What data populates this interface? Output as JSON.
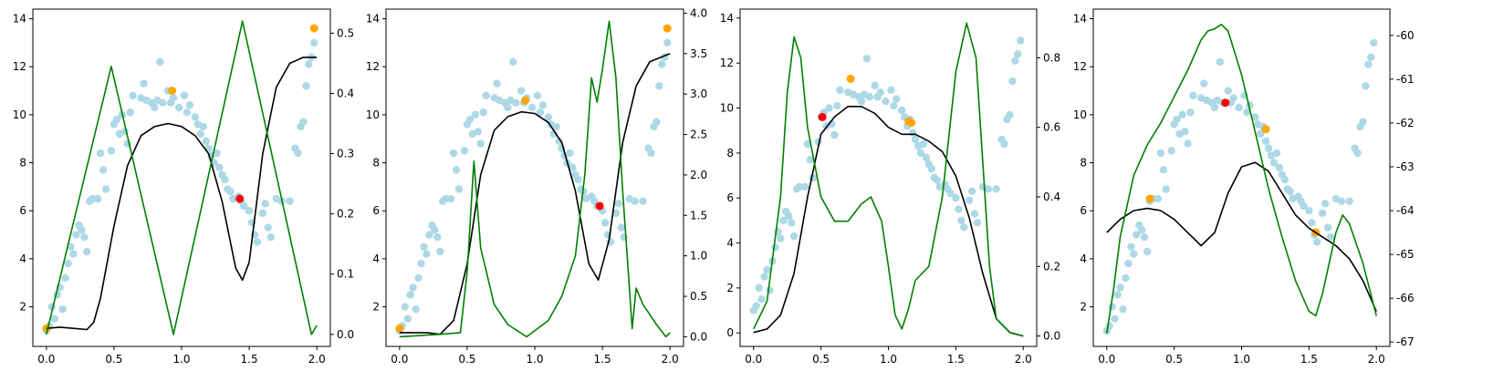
{
  "chart_data": [
    {
      "type": "scatter",
      "xlim": [
        -0.1,
        2.1
      ],
      "ylim": [
        0.35,
        14.4
      ],
      "y2lim": [
        -0.02,
        0.54
      ],
      "x_ticks": [
        "0.0",
        "0.5",
        "1.0",
        "1.5",
        "2.0"
      ],
      "y_ticks": [
        "2",
        "4",
        "6",
        "8",
        "10",
        "12",
        "14"
      ],
      "y2_ticks": [
        "0.0",
        "0.1",
        "0.2",
        "0.3",
        "0.4",
        "0.5"
      ],
      "grid": false,
      "orange_points": [
        {
          "x": 0.0,
          "y": 1.1
        },
        {
          "x": 0.93,
          "y": 11.0
        },
        {
          "x": 1.98,
          "y": 13.6
        }
      ],
      "red_points": [
        {
          "x": 1.43,
          "y": 6.5
        }
      ],
      "black_curve_y2": [
        [
          0.0,
          0.01
        ],
        [
          0.1,
          0.012
        ],
        [
          0.2,
          0.01
        ],
        [
          0.3,
          0.008
        ],
        [
          0.35,
          0.02
        ],
        [
          0.4,
          0.06
        ],
        [
          0.5,
          0.18
        ],
        [
          0.6,
          0.28
        ],
        [
          0.7,
          0.33
        ],
        [
          0.8,
          0.345
        ],
        [
          0.9,
          0.35
        ],
        [
          1.0,
          0.345
        ],
        [
          1.1,
          0.33
        ],
        [
          1.2,
          0.3
        ],
        [
          1.3,
          0.22
        ],
        [
          1.4,
          0.11
        ],
        [
          1.45,
          0.09
        ],
        [
          1.5,
          0.12
        ],
        [
          1.6,
          0.3
        ],
        [
          1.7,
          0.41
        ],
        [
          1.8,
          0.45
        ],
        [
          1.9,
          0.46
        ],
        [
          2.0,
          0.46
        ]
      ],
      "green_curve_y2": [
        [
          0.0,
          0.0
        ],
        [
          0.48,
          0.445
        ],
        [
          0.94,
          0.0
        ],
        [
          1.45,
          0.52
        ],
        [
          1.96,
          0.0
        ],
        [
          2.0,
          0.015
        ]
      ]
    },
    {
      "type": "scatter",
      "xlim": [
        -0.1,
        2.1
      ],
      "ylim": [
        0.35,
        14.4
      ],
      "y2lim": [
        -0.12,
        4.05
      ],
      "x_ticks": [
        "0.0",
        "0.5",
        "1.0",
        "1.5",
        "2.0"
      ],
      "y_ticks": [
        "2",
        "4",
        "6",
        "8",
        "10",
        "12",
        "14"
      ],
      "y2_ticks": [
        "0.0",
        "0.5",
        "1.0",
        "1.5",
        "2.0",
        "2.5",
        "3.0",
        "3.5",
        "4.0"
      ],
      "grid": false,
      "orange_points": [
        {
          "x": 0.0,
          "y": 1.1
        },
        {
          "x": 0.93,
          "y": 10.6
        },
        {
          "x": 1.98,
          "y": 13.6
        }
      ],
      "red_points": [
        {
          "x": 1.48,
          "y": 6.2
        }
      ],
      "black_curve_y2": [
        [
          0.0,
          0.05
        ],
        [
          0.2,
          0.05
        ],
        [
          0.3,
          0.03
        ],
        [
          0.4,
          0.2
        ],
        [
          0.5,
          0.9
        ],
        [
          0.6,
          2.0
        ],
        [
          0.7,
          2.55
        ],
        [
          0.8,
          2.72
        ],
        [
          0.9,
          2.78
        ],
        [
          1.0,
          2.76
        ],
        [
          1.1,
          2.65
        ],
        [
          1.2,
          2.4
        ],
        [
          1.3,
          1.8
        ],
        [
          1.4,
          0.9
        ],
        [
          1.47,
          0.7
        ],
        [
          1.55,
          1.2
        ],
        [
          1.65,
          2.4
        ],
        [
          1.75,
          3.1
        ],
        [
          1.85,
          3.4
        ],
        [
          2.0,
          3.5
        ]
      ],
      "green_curve_y2": [
        [
          0.0,
          0.0
        ],
        [
          0.3,
          0.03
        ],
        [
          0.45,
          0.05
        ],
        [
          0.5,
          0.8
        ],
        [
          0.55,
          2.17
        ],
        [
          0.6,
          1.1
        ],
        [
          0.7,
          0.4
        ],
        [
          0.8,
          0.15
        ],
        [
          0.94,
          0.0
        ],
        [
          1.1,
          0.2
        ],
        [
          1.2,
          0.5
        ],
        [
          1.3,
          1.0
        ],
        [
          1.37,
          2.0
        ],
        [
          1.42,
          3.2
        ],
        [
          1.46,
          2.9
        ],
        [
          1.5,
          3.3
        ],
        [
          1.55,
          3.9
        ],
        [
          1.6,
          3.2
        ],
        [
          1.65,
          1.8
        ],
        [
          1.7,
          0.6
        ],
        [
          1.72,
          0.1
        ],
        [
          1.75,
          0.6
        ],
        [
          1.8,
          0.4
        ],
        [
          1.9,
          0.15
        ],
        [
          1.97,
          0.0
        ],
        [
          2.0,
          0.05
        ]
      ]
    },
    {
      "type": "scatter",
      "xlim": [
        -0.1,
        2.1
      ],
      "ylim": [
        -0.6,
        14.4
      ],
      "y2lim": [
        -0.03,
        0.94
      ],
      "x_ticks": [
        "0.0",
        "0.5",
        "1.0",
        "1.5",
        "2.0"
      ],
      "y_ticks": [
        "0",
        "2",
        "4",
        "6",
        "8",
        "10",
        "12",
        "14"
      ],
      "y2_ticks": [
        "0.0",
        "0.2",
        "0.4",
        "0.6",
        "0.8"
      ],
      "grid": false,
      "orange_points": [
        {
          "x": 0.72,
          "y": 11.3
        },
        {
          "x": 1.15,
          "y": 9.4
        },
        {
          "x": 1.17,
          "y": 9.35
        }
      ],
      "red_points": [
        {
          "x": 0.51,
          "y": 9.6
        }
      ],
      "black_curve_y2": [
        [
          0.0,
          0.01
        ],
        [
          0.1,
          0.02
        ],
        [
          0.2,
          0.06
        ],
        [
          0.3,
          0.18
        ],
        [
          0.4,
          0.4
        ],
        [
          0.5,
          0.58
        ],
        [
          0.6,
          0.63
        ],
        [
          0.7,
          0.66
        ],
        [
          0.8,
          0.66
        ],
        [
          0.9,
          0.64
        ],
        [
          1.0,
          0.6
        ],
        [
          1.1,
          0.58
        ],
        [
          1.2,
          0.58
        ],
        [
          1.3,
          0.56
        ],
        [
          1.4,
          0.53
        ],
        [
          1.5,
          0.46
        ],
        [
          1.6,
          0.34
        ],
        [
          1.7,
          0.18
        ],
        [
          1.8,
          0.05
        ],
        [
          1.9,
          0.01
        ],
        [
          2.0,
          0.0
        ]
      ],
      "green_curve_y2": [
        [
          0.0,
          0.02
        ],
        [
          0.1,
          0.1
        ],
        [
          0.2,
          0.4
        ],
        [
          0.25,
          0.7
        ],
        [
          0.3,
          0.86
        ],
        [
          0.35,
          0.8
        ],
        [
          0.4,
          0.6
        ],
        [
          0.5,
          0.4
        ],
        [
          0.6,
          0.33
        ],
        [
          0.7,
          0.33
        ],
        [
          0.8,
          0.38
        ],
        [
          0.87,
          0.4
        ],
        [
          0.95,
          0.33
        ],
        [
          1.0,
          0.2
        ],
        [
          1.05,
          0.06
        ],
        [
          1.1,
          0.02
        ],
        [
          1.15,
          0.08
        ],
        [
          1.2,
          0.16
        ],
        [
          1.3,
          0.2
        ],
        [
          1.4,
          0.4
        ],
        [
          1.5,
          0.76
        ],
        [
          1.58,
          0.9
        ],
        [
          1.65,
          0.8
        ],
        [
          1.7,
          0.5
        ],
        [
          1.75,
          0.2
        ],
        [
          1.8,
          0.05
        ],
        [
          1.9,
          0.01
        ],
        [
          2.0,
          0.0
        ]
      ]
    },
    {
      "type": "scatter",
      "xlim": [
        -0.1,
        2.1
      ],
      "ylim": [
        0.35,
        14.4
      ],
      "y2lim": [
        -67.1,
        -59.4
      ],
      "x_ticks": [
        "0.0",
        "0.5",
        "1.0",
        "1.5",
        "2.0"
      ],
      "y_ticks": [
        "2",
        "4",
        "6",
        "8",
        "10",
        "12",
        "14"
      ],
      "y2_ticks": [
        "-60",
        "-61",
        "-62",
        "-63",
        "-64",
        "-65",
        "-66",
        "-67"
      ],
      "grid": false,
      "orange_points": [
        {
          "x": 0.32,
          "y": 6.5
        },
        {
          "x": 1.18,
          "y": 9.4
        },
        {
          "x": 1.55,
          "y": 5.1
        }
      ],
      "red_points": [
        {
          "x": 0.88,
          "y": 10.5
        }
      ],
      "black_curve_y2": [
        [
          0.0,
          -64.5
        ],
        [
          0.1,
          -64.2
        ],
        [
          0.2,
          -64.0
        ],
        [
          0.3,
          -63.95
        ],
        [
          0.4,
          -64.0
        ],
        [
          0.5,
          -64.2
        ],
        [
          0.6,
          -64.5
        ],
        [
          0.7,
          -64.8
        ],
        [
          0.8,
          -64.5
        ],
        [
          0.9,
          -63.6
        ],
        [
          1.0,
          -63.0
        ],
        [
          1.1,
          -62.9
        ],
        [
          1.2,
          -63.1
        ],
        [
          1.3,
          -63.6
        ],
        [
          1.4,
          -64.1
        ],
        [
          1.5,
          -64.4
        ],
        [
          1.6,
          -64.6
        ],
        [
          1.7,
          -64.8
        ],
        [
          1.8,
          -65.1
        ],
        [
          1.9,
          -65.6
        ],
        [
          2.0,
          -66.3
        ]
      ],
      "green_curve_y2": [
        [
          0.0,
          -66.8
        ],
        [
          0.05,
          -65.8
        ],
        [
          0.1,
          -64.6
        ],
        [
          0.2,
          -63.2
        ],
        [
          0.3,
          -62.5
        ],
        [
          0.4,
          -62.0
        ],
        [
          0.5,
          -61.4
        ],
        [
          0.6,
          -60.8
        ],
        [
          0.7,
          -60.1
        ],
        [
          0.75,
          -59.9
        ],
        [
          0.8,
          -59.85
        ],
        [
          0.85,
          -59.75
        ],
        [
          0.9,
          -59.9
        ],
        [
          1.0,
          -60.9
        ],
        [
          1.1,
          -62.2
        ],
        [
          1.2,
          -63.5
        ],
        [
          1.3,
          -64.6
        ],
        [
          1.4,
          -65.6
        ],
        [
          1.5,
          -66.3
        ],
        [
          1.55,
          -66.4
        ],
        [
          1.6,
          -65.9
        ],
        [
          1.7,
          -64.5
        ],
        [
          1.75,
          -64.1
        ],
        [
          1.8,
          -64.3
        ],
        [
          1.9,
          -65.2
        ],
        [
          2.0,
          -66.4
        ]
      ]
    }
  ],
  "scatter_points": [
    [
      0.0,
      1.0
    ],
    [
      0.02,
      1.2
    ],
    [
      0.04,
      2.0
    ],
    [
      0.06,
      1.5
    ],
    [
      0.08,
      2.5
    ],
    [
      0.1,
      2.8
    ],
    [
      0.12,
      1.9
    ],
    [
      0.14,
      3.2
    ],
    [
      0.16,
      3.8
    ],
    [
      0.18,
      4.5
    ],
    [
      0.2,
      4.2
    ],
    [
      0.22,
      5.0
    ],
    [
      0.24,
      5.4
    ],
    [
      0.26,
      5.2
    ],
    [
      0.28,
      4.9
    ],
    [
      0.3,
      4.3
    ],
    [
      0.32,
      6.4
    ],
    [
      0.34,
      6.5
    ],
    [
      0.38,
      6.5
    ],
    [
      0.4,
      8.4
    ],
    [
      0.42,
      7.7
    ],
    [
      0.44,
      6.9
    ],
    [
      0.48,
      8.5
    ],
    [
      0.5,
      9.6
    ],
    [
      0.52,
      9.8
    ],
    [
      0.54,
      9.2
    ],
    [
      0.56,
      10.0
    ],
    [
      0.58,
      9.3
    ],
    [
      0.6,
      8.8
    ],
    [
      0.62,
      10.1
    ],
    [
      0.64,
      10.8
    ],
    [
      0.7,
      10.7
    ],
    [
      0.72,
      11.3
    ],
    [
      0.74,
      10.6
    ],
    [
      0.78,
      10.5
    ],
    [
      0.8,
      10.3
    ],
    [
      0.82,
      10.6
    ],
    [
      0.84,
      12.2
    ],
    [
      0.86,
      10.5
    ],
    [
      0.9,
      11.0
    ],
    [
      0.92,
      10.5
    ],
    [
      0.94,
      10.7
    ],
    [
      0.98,
      10.3
    ],
    [
      1.02,
      10.8
    ],
    [
      1.04,
      10.1
    ],
    [
      1.06,
      10.4
    ],
    [
      1.1,
      9.9
    ],
    [
      1.12,
      9.6
    ],
    [
      1.14,
      9.2
    ],
    [
      1.16,
      9.5
    ],
    [
      1.18,
      8.9
    ],
    [
      1.2,
      8.6
    ],
    [
      1.22,
      8.3
    ],
    [
      1.24,
      8.0
    ],
    [
      1.26,
      8.4
    ],
    [
      1.28,
      7.8
    ],
    [
      1.3,
      7.5
    ],
    [
      1.32,
      7.3
    ],
    [
      1.34,
      6.9
    ],
    [
      1.36,
      6.8
    ],
    [
      1.38,
      6.5
    ],
    [
      1.42,
      6.6
    ],
    [
      1.44,
      6.4
    ],
    [
      1.46,
      6.2
    ],
    [
      1.5,
      6.0
    ],
    [
      1.52,
      5.5
    ],
    [
      1.54,
      5.0
    ],
    [
      1.56,
      4.7
    ],
    [
      1.6,
      5.9
    ],
    [
      1.62,
      6.3
    ],
    [
      1.64,
      5.3
    ],
    [
      1.66,
      4.9
    ],
    [
      1.7,
      6.5
    ],
    [
      1.74,
      6.4
    ],
    [
      1.8,
      6.4
    ],
    [
      1.84,
      8.6
    ],
    [
      1.86,
      8.4
    ],
    [
      1.88,
      9.5
    ],
    [
      1.9,
      9.7
    ],
    [
      1.92,
      11.2
    ],
    [
      1.94,
      12.1
    ],
    [
      1.96,
      12.4
    ],
    [
      1.98,
      13.0
    ]
  ],
  "colors": {
    "scatter": "#add8e6",
    "orange": "#ffa500",
    "red": "#ff0000",
    "black_curve": "#000000",
    "green_curve": "#008000"
  }
}
